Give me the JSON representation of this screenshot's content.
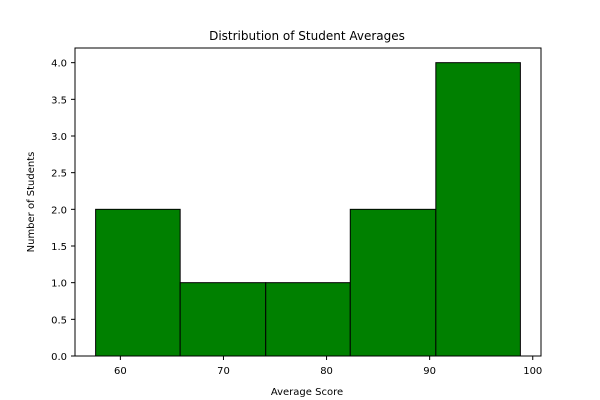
{
  "chart_data": {
    "type": "bar",
    "title": "Distribution of Student Averages",
    "xlabel": "Average Score",
    "ylabel": "Number of Students",
    "bins": [
      {
        "start": 57.6,
        "end": 65.8,
        "count": 2
      },
      {
        "start": 65.8,
        "end": 74.1,
        "count": 1
      },
      {
        "start": 74.1,
        "end": 82.3,
        "count": 1
      },
      {
        "start": 82.3,
        "end": 90.6,
        "count": 2
      },
      {
        "start": 90.6,
        "end": 98.8,
        "count": 4
      }
    ],
    "xlim": [
      55.6,
      100.8
    ],
    "ylim": [
      0,
      4.2
    ],
    "xticks": [
      60,
      70,
      80,
      90,
      100
    ],
    "yticks": [
      "0.0",
      "0.5",
      "1.0",
      "1.5",
      "2.0",
      "2.5",
      "3.0",
      "3.5",
      "4.0"
    ],
    "bar_color": "#008000",
    "edge_color": "#000000",
    "grid": false
  }
}
